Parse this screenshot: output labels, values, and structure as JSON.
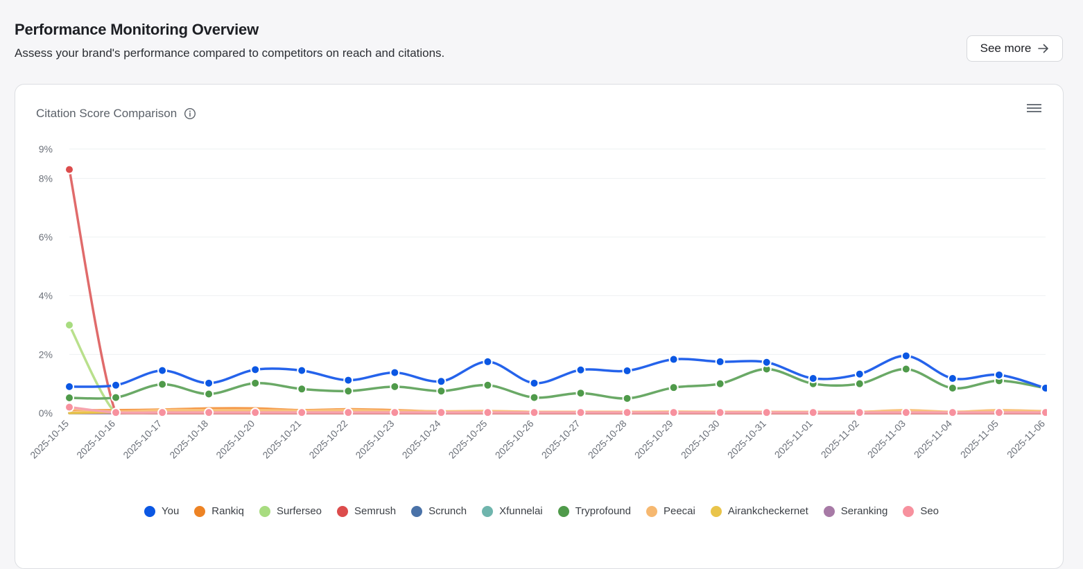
{
  "header": {
    "title": "Performance Monitoring Overview",
    "subtitle": "Assess your brand's performance compared to competitors on reach and citations.",
    "see_more_label": "See more"
  },
  "card": {
    "title": "Citation Score Comparison",
    "info_icon": "info-icon",
    "menu_icon": "hamburger-menu-icon"
  },
  "chart_data": {
    "type": "line",
    "title": "Citation Score Comparison",
    "xlabel": "",
    "ylabel": "",
    "ylim": [
      0,
      9
    ],
    "yticks": [
      "0%",
      "2%",
      "4%",
      "6%",
      "8%",
      "9%"
    ],
    "ytick_values": [
      0,
      2,
      4,
      6,
      8,
      9
    ],
    "grid": true,
    "legend_position": "bottom",
    "categories": [
      "2025-10-15",
      "2025-10-16",
      "2025-10-17",
      "2025-10-18",
      "2025-10-20",
      "2025-10-21",
      "2025-10-22",
      "2025-10-23",
      "2025-10-24",
      "2025-10-25",
      "2025-10-26",
      "2025-10-27",
      "2025-10-28",
      "2025-10-29",
      "2025-10-30",
      "2025-10-31",
      "2025-11-01",
      "2025-11-02",
      "2025-11-03",
      "2025-11-04",
      "2025-11-05",
      "2025-11-06"
    ],
    "series": [
      {
        "name": "You",
        "color": "#2563eb",
        "dot": "#0b57e3",
        "markers": true,
        "values": [
          0.9,
          0.95,
          1.45,
          1.02,
          1.48,
          1.45,
          1.12,
          1.38,
          1.08,
          1.75,
          1.02,
          1.47,
          1.44,
          1.83,
          1.75,
          1.73,
          1.18,
          1.33,
          1.95,
          1.18,
          1.3,
          0.85
        ]
      },
      {
        "name": "Rankiq",
        "color": "#f59a4a",
        "dot": "#ed8324",
        "markers": false,
        "values": [
          0.1,
          0.1,
          0.12,
          0.16,
          0.16,
          0.1,
          0.13,
          0.1,
          0.05,
          0.05,
          0.04,
          0.04,
          0.04,
          0.04,
          0.04,
          0.04,
          0.04,
          0.04,
          0.05,
          0.04,
          0.05,
          0.05
        ]
      },
      {
        "name": "Surferseo",
        "color": "#b9e08c",
        "dot": "#a8dc80",
        "markers": false,
        "values": [
          3.0,
          0.0,
          0.0,
          0.0,
          0.0,
          0.0,
          0.0,
          0.0,
          0.0,
          0.0,
          0.0,
          0.0,
          0.0,
          0.0,
          0.0,
          0.0,
          0.0,
          0.0,
          0.0,
          0.0,
          0.0,
          0.0
        ]
      },
      {
        "name": "Semrush",
        "color": "#e06b6b",
        "dot": "#dc4c4c",
        "markers": false,
        "values": [
          8.3,
          0.0,
          0.0,
          0.0,
          0.0,
          0.0,
          0.0,
          0.0,
          0.0,
          0.0,
          0.0,
          0.0,
          0.0,
          0.0,
          0.0,
          0.0,
          0.0,
          0.0,
          0.0,
          0.0,
          0.0,
          0.0
        ]
      },
      {
        "name": "Scrunch",
        "color": "#4a72a8",
        "dot": "#4a72a8",
        "markers": false,
        "values": [
          0.0,
          0.0,
          0.0,
          0.0,
          0.0,
          0.0,
          0.0,
          0.0,
          0.0,
          0.0,
          0.0,
          0.0,
          0.0,
          0.0,
          0.0,
          0.0,
          0.0,
          0.0,
          0.0,
          0.0,
          0.0,
          0.0
        ]
      },
      {
        "name": "Xfunnelai",
        "color": "#6fb5ad",
        "dot": "#6fb5ad",
        "markers": false,
        "values": [
          0.0,
          0.0,
          0.0,
          0.0,
          0.0,
          0.0,
          0.0,
          0.0,
          0.0,
          0.0,
          0.0,
          0.0,
          0.0,
          0.0,
          0.0,
          0.0,
          0.0,
          0.0,
          0.0,
          0.0,
          0.0,
          0.0
        ]
      },
      {
        "name": "Tryprofound",
        "color": "#6aa966",
        "dot": "#4f9a4a",
        "markers": true,
        "values": [
          0.52,
          0.53,
          0.98,
          0.65,
          1.02,
          0.82,
          0.75,
          0.9,
          0.75,
          0.95,
          0.53,
          0.68,
          0.5,
          0.87,
          1.0,
          1.5,
          1.0,
          1.0,
          1.5,
          0.85,
          1.1,
          0.85
        ]
      },
      {
        "name": "Peecai",
        "color": "#f8c27c",
        "dot": "#f6b870",
        "markers": false,
        "values": [
          0.15,
          0.05,
          0.1,
          0.1,
          0.1,
          0.08,
          0.1,
          0.07,
          0.06,
          0.07,
          0.04,
          0.04,
          0.04,
          0.05,
          0.04,
          0.04,
          0.04,
          0.04,
          0.1,
          0.04,
          0.1,
          0.06
        ]
      },
      {
        "name": "Airankcheckernet",
        "color": "#e9c44a",
        "dot": "#e9c44a",
        "markers": false,
        "values": [
          0.0,
          0.03,
          0.03,
          0.03,
          0.03,
          0.03,
          0.03,
          0.03,
          0.03,
          0.03,
          0.03,
          0.03,
          0.03,
          0.03,
          0.03,
          0.03,
          0.03,
          0.03,
          0.05,
          0.03,
          0.05,
          0.03
        ]
      },
      {
        "name": "Seranking",
        "color": "#a77aa6",
        "dot": "#a77aa6",
        "markers": false,
        "values": [
          0.0,
          0.0,
          0.0,
          0.0,
          0.0,
          0.0,
          0.0,
          0.0,
          0.0,
          0.0,
          0.0,
          0.0,
          0.0,
          0.0,
          0.0,
          0.0,
          0.0,
          0.0,
          0.0,
          0.0,
          0.0,
          0.0
        ]
      },
      {
        "name": "Seo",
        "color": "#f6a3ae",
        "dot": "#f7919e",
        "markers": true,
        "values": [
          0.2,
          0.02,
          0.02,
          0.02,
          0.02,
          0.02,
          0.02,
          0.02,
          0.02,
          0.02,
          0.02,
          0.02,
          0.02,
          0.02,
          0.02,
          0.02,
          0.02,
          0.02,
          0.02,
          0.02,
          0.02,
          0.02
        ]
      }
    ]
  }
}
